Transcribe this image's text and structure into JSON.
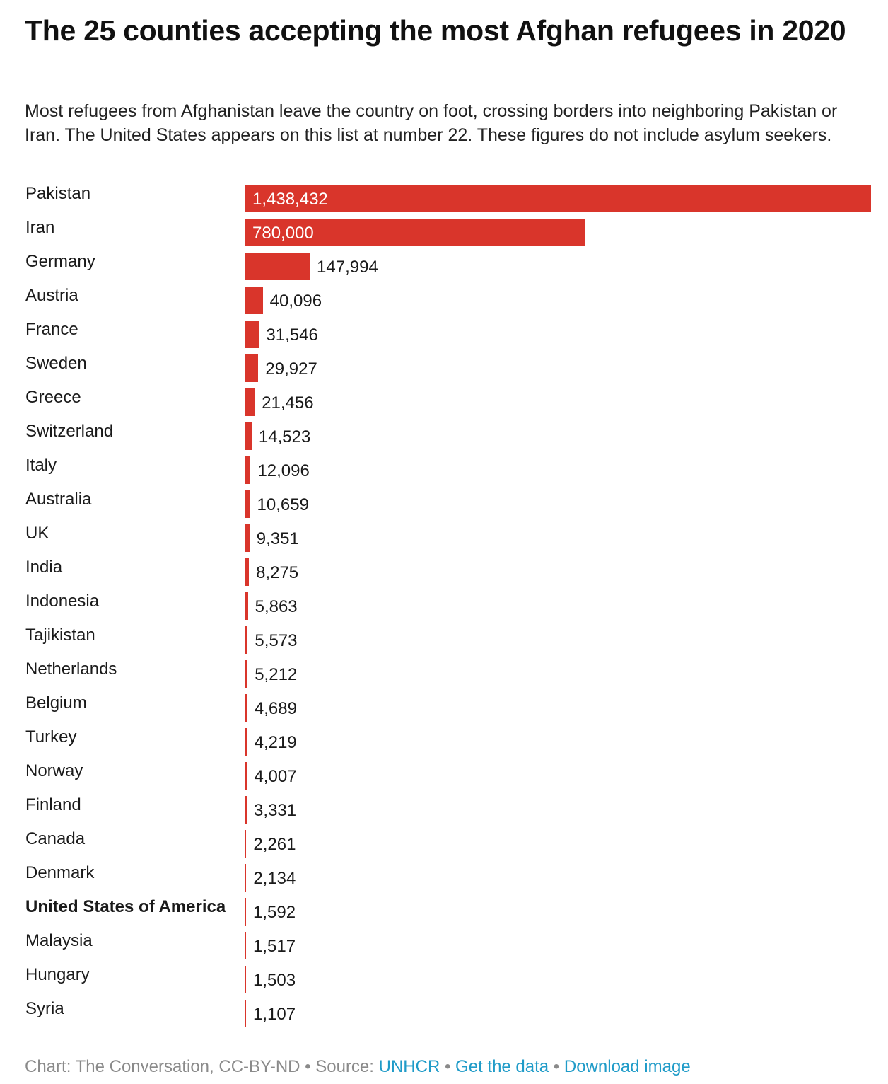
{
  "title": "The 25 counties accepting the most Afghan refugees in 2020",
  "subtitle": "Most refugees from Afghanistan leave the country on foot, crossing borders into neighboring Pakistan or Iran. The United States appears on this list at number 22. These figures do not include asylum seekers.",
  "colors": {
    "bar": "#d9352b",
    "link": "#1f9bc8",
    "muted": "#8a8a8a"
  },
  "chart_data": {
    "type": "bar",
    "orientation": "horizontal",
    "title": "The 25 counties accepting the most Afghan refugees in 2020",
    "xlabel": "",
    "ylabel": "",
    "xlim": [
      0,
      1438432
    ],
    "grid": false,
    "highlighted_category": "United States of America",
    "categories": [
      "Pakistan",
      "Iran",
      "Germany",
      "Austria",
      "France",
      "Sweden",
      "Greece",
      "Switzerland",
      "Italy",
      "Australia",
      "UK",
      "India",
      "Indonesia",
      "Tajikistan",
      "Netherlands",
      "Belgium",
      "Turkey",
      "Norway",
      "Finland",
      "Canada",
      "Denmark",
      "United States of America",
      "Malaysia",
      "Hungary",
      "Syria"
    ],
    "values": [
      1438432,
      780000,
      147994,
      40096,
      31546,
      29927,
      21456,
      14523,
      12096,
      10659,
      9351,
      8275,
      5863,
      5573,
      5212,
      4689,
      4219,
      4007,
      3331,
      2261,
      2134,
      1592,
      1517,
      1503,
      1107
    ],
    "value_labels": [
      "1,438,432",
      "780,000",
      "147,994",
      "40,096",
      "31,546",
      "29,927",
      "21,456",
      "14,523",
      "12,096",
      "10,659",
      "9,351",
      "8,275",
      "5,863",
      "5,573",
      "5,212",
      "4,689",
      "4,219",
      "4,007",
      "3,331",
      "2,261",
      "2,134",
      "1,592",
      "1,517",
      "1,503",
      "1,107"
    ]
  },
  "footer": {
    "credit": "Chart: The Conversation, CC-BY-ND",
    "sep": " • ",
    "source_label": "Source: ",
    "source_link": "UNHCR",
    "get_data": "Get the data",
    "download": "Download image"
  }
}
